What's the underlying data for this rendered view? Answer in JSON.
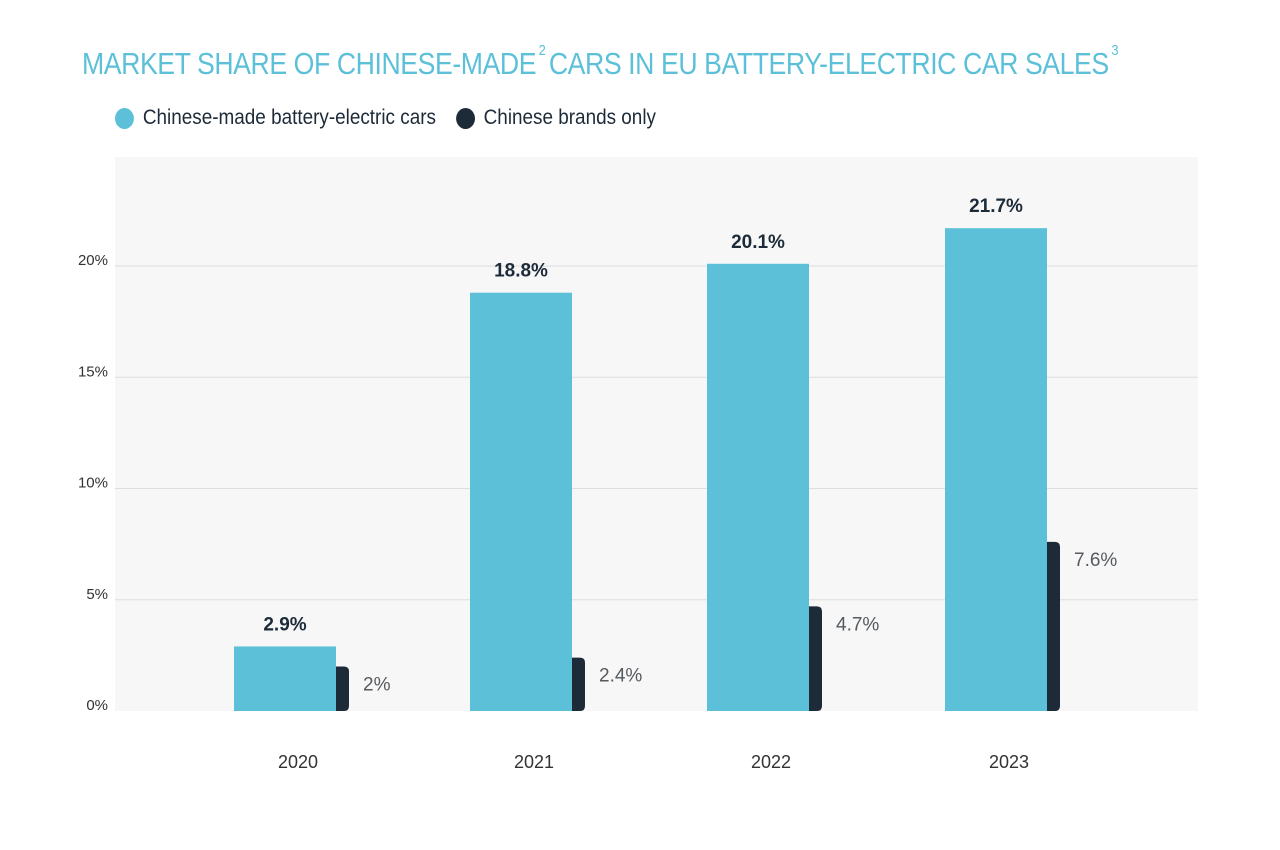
{
  "chart_data": {
    "type": "bar",
    "title": "MARKET SHARE OF CHINESE-MADE",
    "title_mid": "CARS IN EU BATTERY-ELECTRIC CAR SALES",
    "title_note1": "2",
    "title_note2": "3",
    "categories": [
      "2020",
      "2021",
      "2022",
      "2023"
    ],
    "series": [
      {
        "name": "Chinese-made battery-electric cars",
        "values": [
          2.9,
          18.8,
          20.1,
          21.7
        ],
        "labels": [
          "2.9%",
          "18.8%",
          "20.1%",
          "21.7%"
        ],
        "color": "#5bc0d8"
      },
      {
        "name": "Chinese brands only",
        "values": [
          2,
          2.4,
          4.7,
          7.6
        ],
        "labels": [
          "2%",
          "2.4%",
          "4.7%",
          "7.6%"
        ],
        "color": "#1d2b39"
      }
    ],
    "yticks": [
      "0%",
      "5%",
      "10%",
      "15%",
      "20%"
    ],
    "ytick_values": [
      0,
      5,
      10,
      15,
      20
    ],
    "ylim": [
      0,
      25
    ],
    "xlabel": "",
    "ylabel": "",
    "grid": true,
    "legend": "top-left"
  },
  "colors": {
    "title": "#5bc0d8",
    "plot_bg": "#f7f7f7",
    "grid": "#dedede"
  }
}
